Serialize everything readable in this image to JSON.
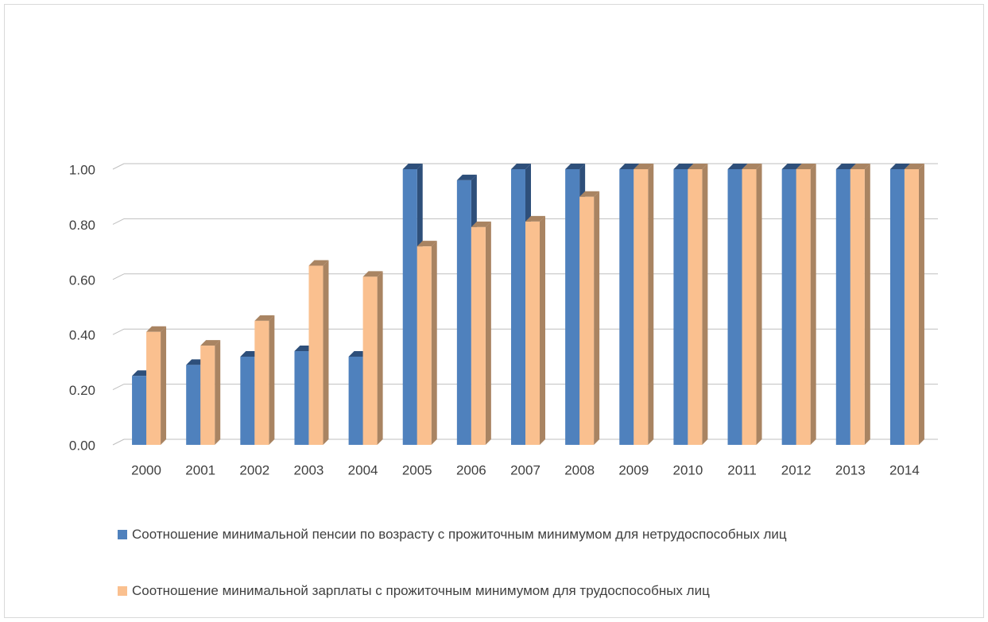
{
  "chart_data": {
    "type": "bar3d",
    "categories": [
      "2000",
      "2001",
      "2002",
      "2003",
      "2004",
      "2005",
      "2006",
      "2007",
      "2008",
      "2009",
      "2010",
      "2011",
      "2012",
      "2013",
      "2014"
    ],
    "series": [
      {
        "name": "Соотношение минимальной пенсии по возрасту с прожиточным минимумом для нетрудоспособных лиц",
        "color": "#4f81bd",
        "side_color": "#2e4f7a",
        "values": [
          0.25,
          0.29,
          0.32,
          0.34,
          0.32,
          1.0,
          0.96,
          1.0,
          1.0,
          1.0,
          1.0,
          1.0,
          1.0,
          1.0,
          1.0
        ]
      },
      {
        "name": "Соотношение минимальной зарплаты с прожиточным минимумом для трудоспособных лиц",
        "color": "#fac08f",
        "side_color": "#a98462",
        "values": [
          0.41,
          0.36,
          0.45,
          0.65,
          0.61,
          0.72,
          0.79,
          0.81,
          0.9,
          1.0,
          1.0,
          1.0,
          1.0,
          1.0,
          1.0
        ]
      }
    ],
    "ylim": [
      0,
      1
    ],
    "yticks": [
      {
        "value": 0,
        "label": "0.00"
      },
      {
        "value": 0.2,
        "label": "0.20"
      },
      {
        "value": 0.4,
        "label": "0.40"
      },
      {
        "value": 0.6,
        "label": "0.60"
      },
      {
        "value": 0.8,
        "label": "0.80"
      },
      {
        "value": 1,
        "label": "1.00"
      }
    ],
    "grid": true
  }
}
